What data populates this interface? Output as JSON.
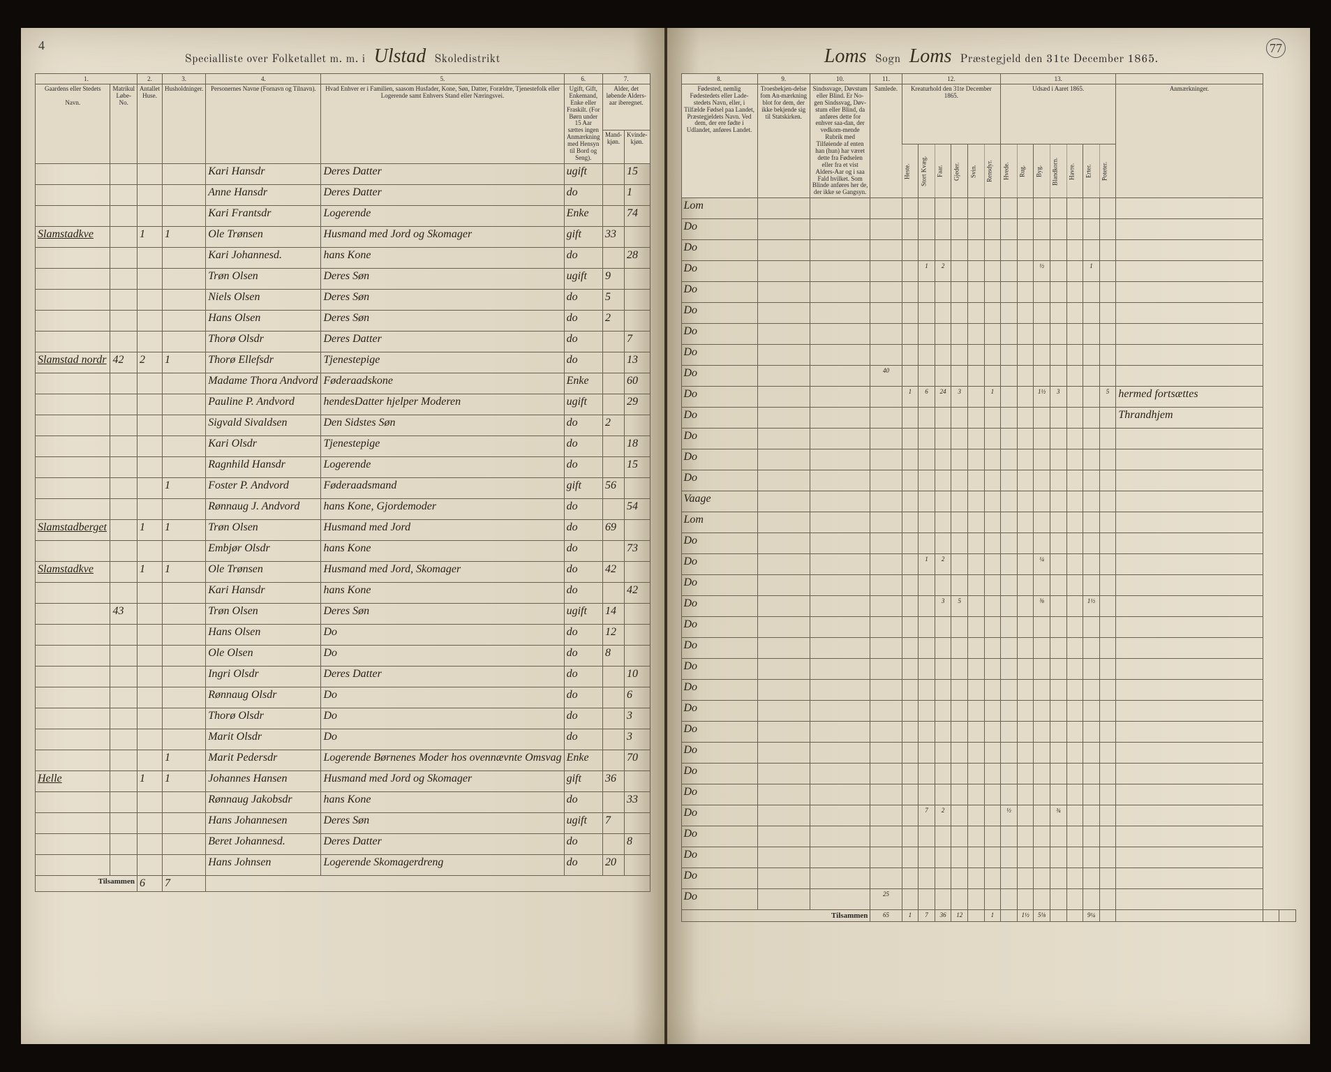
{
  "meta": {
    "page_left_num": "4",
    "page_right_num": "77",
    "title_left_printed_1": "Specialliste over Folketallet m. m. i",
    "title_left_script": "Ulstad",
    "title_left_printed_2": "Skoledistrikt",
    "title_right_script_1": "Loms",
    "title_right_printed_1": "Sogn",
    "title_right_script_2": "Loms",
    "title_right_printed_2": "Præstegjeld den 31te December 1865."
  },
  "col_headers_left": {
    "c1": "1.",
    "c2": "2.",
    "c3": "3.",
    "c4": "4.",
    "c5": "5.",
    "c6": "6.",
    "c7": "7."
  },
  "col_sub_left": {
    "c1a": "Gaardens eller Stedets",
    "c1b": "Navn.",
    "c1c": "Matrikul Løbe-No.",
    "c2": "Antallet Huse.",
    "c3": "Husholdninger.",
    "c4": "Personernes Navne (Fornavn og Tilnavn).",
    "c5": "Hvad Enhver er i Familien, saasom Husfader, Kone, Søn, Datter, Forældre, Tjenestefolk eller Logerende samt Enhvers Stand eller Næringsvei.",
    "c6": "Ugift, Gift, Enkemand, Enke eller Fraskilt. (For Børn under 15 Aar sættes ingen Anmærkning med Hensyn til Bord og Seng).",
    "c7a": "Alder, det løbende Alders-aar iberegnet.",
    "c7b": "Mand-kjøn.",
    "c7c": "Kvinde-kjøn."
  },
  "col_headers_right": {
    "c8": "8.",
    "c9": "9.",
    "c10": "10.",
    "c11": "11.",
    "c12": "12.",
    "c13": "13."
  },
  "col_sub_right": {
    "c8": "Fødested, nemlig Fødestedets eller Lade-stedets Navn, eller, i Tilfælde Fødsel paa Landet, Præstegjeldets Navn. Ved dem, der ere fødte i Udlandet, anføres Landet.",
    "c9": "Troesbekjen-delse fom An-mærkning blot for dem, der ikke bekjende sig til Statskirken.",
    "c10": "Sindssvage, Døvstum eller Blind. Er No-gen Sindssvag, Døv-stum eller Blind, da anføres dette for enhver saa-dan, der vedkom-mende Rubrik med Tilføiende af enten han (hun) har været dette fra Fødselen eller fra et vist Alders-Aar og i saa Fald hvilket. Som Blinde anføres her de, der ikke se Gangsyn.",
    "c11": "Samlede.",
    "c12_title": "Kreaturhold den 31te December 1865.",
    "c12_cols": [
      "Heste.",
      "Stort Kvæg.",
      "Faar.",
      "Gjeder.",
      "Svin.",
      "Rensdyr."
    ],
    "c13_title": "Udsæd i Aaret 1865.",
    "c13_cols": [
      "Hvede.",
      "Rug.",
      "Byg.",
      "Blandkorn.",
      "Havre.",
      "Erter.",
      "Poteter."
    ],
    "remarks": "Anmærkninger."
  },
  "rows": [
    {
      "farm": "",
      "mat": "",
      "h": "",
      "hh": "",
      "name": "Kari Hansdr",
      "rel": "Deres Datter",
      "stat": "ugift",
      "m": "",
      "f": "15",
      "birth": "Lom"
    },
    {
      "farm": "",
      "mat": "",
      "h": "",
      "hh": "",
      "name": "Anne Hansdr",
      "rel": "Deres Datter",
      "stat": "do",
      "m": "",
      "f": "1",
      "birth": "Do"
    },
    {
      "farm": "",
      "mat": "",
      "h": "",
      "hh": "",
      "name": "Kari Frantsdr",
      "rel": "Logerende",
      "stat": "Enke",
      "m": "",
      "f": "74",
      "birth": "Do"
    },
    {
      "farm": "Slamstadkve",
      "mat": "",
      "h": "1",
      "hh": "1",
      "name": "Ole Trønsen",
      "rel": "Husmand med Jord og Skomager",
      "stat": "gift",
      "m": "33",
      "f": "",
      "birth": "Do",
      "k12": [
        "",
        "1",
        "2",
        "",
        "",
        "",
        "",
        "",
        "½",
        "",
        "",
        "1"
      ]
    },
    {
      "farm": "",
      "mat": "",
      "h": "",
      "hh": "",
      "name": "Kari Johannesd.",
      "rel": "hans Kone",
      "stat": "do",
      "m": "",
      "f": "28",
      "birth": "Do"
    },
    {
      "farm": "",
      "mat": "",
      "h": "",
      "hh": "",
      "name": "Trøn Olsen",
      "rel": "Deres Søn",
      "stat": "ugift",
      "m": "9",
      "f": "",
      "birth": "Do"
    },
    {
      "farm": "",
      "mat": "",
      "h": "",
      "hh": "",
      "name": "Niels Olsen",
      "rel": "Deres Søn",
      "stat": "do",
      "m": "5",
      "f": "",
      "birth": "Do"
    },
    {
      "farm": "",
      "mat": "",
      "h": "",
      "hh": "",
      "name": "Hans Olsen",
      "rel": "Deres Søn",
      "stat": "do",
      "m": "2",
      "f": "",
      "birth": "Do"
    },
    {
      "farm": "",
      "mat": "",
      "h": "",
      "hh": "",
      "name": "Thorø Olsdr",
      "rel": "Deres Datter",
      "stat": "do",
      "m": "",
      "f": "7",
      "birth": "Do",
      "k11": "40"
    },
    {
      "farm": "Slamstad nordr",
      "mat": "42",
      "h": "2",
      "hh": "1",
      "name": "Thorø Ellefsdr",
      "rel": "Tjenestepige",
      "stat": "do",
      "m": "",
      "f": "13",
      "birth": "Do",
      "k12": [
        "1",
        "6",
        "24",
        "3",
        "",
        "1",
        "",
        "",
        "1½",
        "3",
        "",
        "",
        "5"
      ],
      "remark": "hermed fortsættes"
    },
    {
      "farm": "",
      "mat": "",
      "h": "",
      "hh": "",
      "name": "Madame Thora Andvord",
      "rel": "Føderaadskone",
      "stat": "Enke",
      "m": "",
      "f": "60",
      "birth": "Do",
      "remark": "Thrandhjem"
    },
    {
      "farm": "",
      "mat": "",
      "h": "",
      "hh": "",
      "name": "Pauline P. Andvord",
      "rel": "hendesDatter hjelper Moderen",
      "stat": "ugift",
      "m": "",
      "f": "29",
      "birth": "Do"
    },
    {
      "farm": "",
      "mat": "",
      "h": "",
      "hh": "",
      "name": "Sigvald Sivaldsen",
      "rel": "Den Sidstes Søn",
      "stat": "do",
      "m": "2",
      "f": "",
      "birth": "Do"
    },
    {
      "farm": "",
      "mat": "",
      "h": "",
      "hh": "",
      "name": "Kari Olsdr",
      "rel": "Tjenestepige",
      "stat": "do",
      "m": "",
      "f": "18",
      "birth": "Do"
    },
    {
      "farm": "",
      "mat": "",
      "h": "",
      "hh": "",
      "name": "Ragnhild Hansdr",
      "rel": "Logerende",
      "stat": "do",
      "m": "",
      "f": "15",
      "birth": "Vaage"
    },
    {
      "farm": "",
      "mat": "",
      "h": "",
      "hh": "1",
      "name": "Foster P. Andvord",
      "rel": "Føderaadsmand",
      "stat": "gift",
      "m": "56",
      "f": "",
      "birth": "Lom"
    },
    {
      "farm": "",
      "mat": "",
      "h": "",
      "hh": "",
      "name": "Rønnaug J. Andvord",
      "rel": "hans Kone, Gjordemoder",
      "stat": "do",
      "m": "",
      "f": "54",
      "birth": "Do"
    },
    {
      "farm": "Slamstadberget",
      "mat": "",
      "h": "1",
      "hh": "1",
      "name": "Trøn Olsen",
      "rel": "Husmand med Jord",
      "stat": "do",
      "m": "69",
      "f": "",
      "birth": "Do",
      "k12": [
        "",
        "1",
        "2",
        "",
        "",
        "",
        "",
        "",
        "¼",
        "",
        ""
      ]
    },
    {
      "farm": "",
      "mat": "",
      "h": "",
      "hh": "",
      "name": "Embjør Olsdr",
      "rel": "hans Kone",
      "stat": "do",
      "m": "",
      "f": "73",
      "birth": "Do"
    },
    {
      "farm": "Slamstadkve",
      "mat": "",
      "h": "1",
      "hh": "1",
      "name": "Ole Trønsen",
      "rel": "Husmand med Jord, Skomager",
      "stat": "do",
      "m": "42",
      "f": "",
      "birth": "Do",
      "k12": [
        "",
        "",
        "3",
        "5",
        "",
        "",
        "",
        "",
        "⅜",
        "",
        "",
        "1½"
      ]
    },
    {
      "farm": "",
      "mat": "",
      "h": "",
      "hh": "",
      "name": "Kari Hansdr",
      "rel": "hans Kone",
      "stat": "do",
      "m": "",
      "f": "42",
      "birth": "Do"
    },
    {
      "farm": "",
      "mat": "43",
      "h": "",
      "hh": "",
      "name": "Trøn Olsen",
      "rel": "Deres Søn",
      "stat": "ugift",
      "m": "14",
      "f": "",
      "birth": "Do"
    },
    {
      "farm": "",
      "mat": "",
      "h": "",
      "hh": "",
      "name": "Hans Olsen",
      "rel": "Do",
      "stat": "do",
      "m": "12",
      "f": "",
      "birth": "Do"
    },
    {
      "farm": "",
      "mat": "",
      "h": "",
      "hh": "",
      "name": "Ole Olsen",
      "rel": "Do",
      "stat": "do",
      "m": "8",
      "f": "",
      "birth": "Do"
    },
    {
      "farm": "",
      "mat": "",
      "h": "",
      "hh": "",
      "name": "Ingri Olsdr",
      "rel": "Deres Datter",
      "stat": "do",
      "m": "",
      "f": "10",
      "birth": "Do"
    },
    {
      "farm": "",
      "mat": "",
      "h": "",
      "hh": "",
      "name": "Rønnaug Olsdr",
      "rel": "Do",
      "stat": "do",
      "m": "",
      "f": "6",
      "birth": "Do"
    },
    {
      "farm": "",
      "mat": "",
      "h": "",
      "hh": "",
      "name": "Thorø Olsdr",
      "rel": "Do",
      "stat": "do",
      "m": "",
      "f": "3",
      "birth": "Do"
    },
    {
      "farm": "",
      "mat": "",
      "h": "",
      "hh": "",
      "name": "Marit Olsdr",
      "rel": "Do",
      "stat": "do",
      "m": "",
      "f": "3",
      "birth": "Do"
    },
    {
      "farm": "",
      "mat": "",
      "h": "",
      "hh": "1",
      "name": "Marit Pedersdr",
      "rel": "Logerende Børnenes Moder hos ovennævnte Omsvag",
      "stat": "Enke",
      "m": "",
      "f": "70",
      "birth": "Do"
    },
    {
      "farm": "Helle",
      "mat": "",
      "h": "1",
      "hh": "1",
      "name": "Johannes Hansen",
      "rel": "Husmand med Jord og Skomager",
      "stat": "gift",
      "m": "36",
      "f": "",
      "birth": "Do",
      "k12": [
        "",
        "7",
        "2",
        "",
        "",
        "",
        "½",
        "",
        "",
        "¾",
        ""
      ]
    },
    {
      "farm": "",
      "mat": "",
      "h": "",
      "hh": "",
      "name": "Rønnaug Jakobsdr",
      "rel": "hans Kone",
      "stat": "do",
      "m": "",
      "f": "33",
      "birth": "Do"
    },
    {
      "farm": "",
      "mat": "",
      "h": "",
      "hh": "",
      "name": "Hans Johannesen",
      "rel": "Deres Søn",
      "stat": "ugift",
      "m": "7",
      "f": "",
      "birth": "Do"
    },
    {
      "farm": "",
      "mat": "",
      "h": "",
      "hh": "",
      "name": "Beret Johannesd.",
      "rel": "Deres Datter",
      "stat": "do",
      "m": "",
      "f": "8",
      "birth": "Do"
    },
    {
      "farm": "",
      "mat": "",
      "h": "",
      "hh": "",
      "name": "Hans Johnsen",
      "rel": "Logerende Skomagerdreng",
      "stat": "do",
      "m": "20",
      "f": "",
      "birth": "Do",
      "k11": "25"
    }
  ],
  "totals": {
    "left_label": "Tilsammen",
    "left_h": "6",
    "left_hh": "7",
    "right_label": "Tilsammen",
    "right_vals": [
      "65",
      "1",
      "7",
      "36",
      "12",
      "",
      "1",
      "",
      "1½",
      "5⅛",
      "",
      "",
      "9¼"
    ]
  },
  "colors": {
    "paper": "#e8e0cf",
    "ink": "#2a2218",
    "rule": "#6a6050",
    "background": "#1a1410"
  }
}
